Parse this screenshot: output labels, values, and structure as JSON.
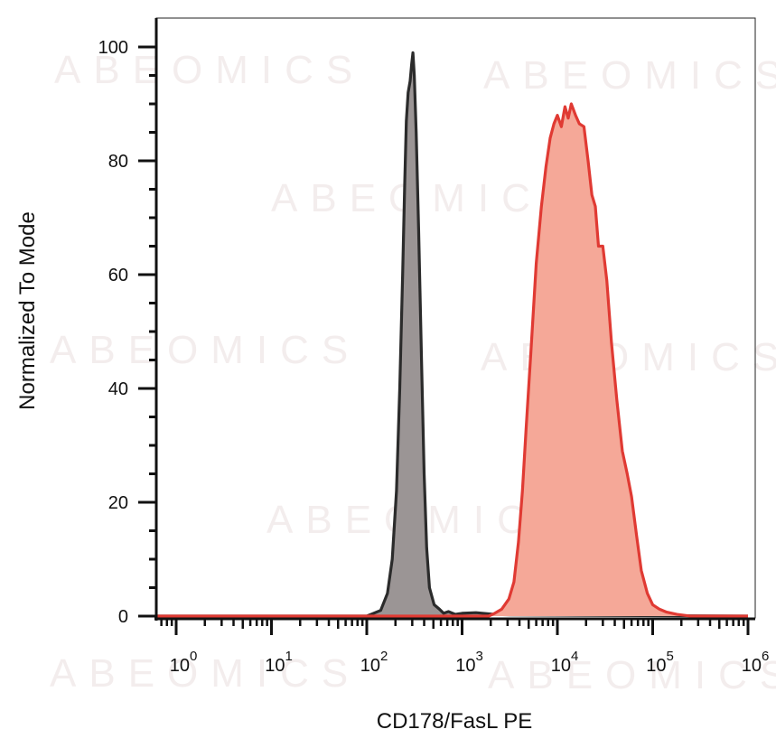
{
  "chart_data": {
    "type": "area",
    "title": "",
    "xlabel": "CD178/FasL PE",
    "ylabel": "Normalized To Mode",
    "x_scale": "log",
    "xlim": [
      0.6,
      1000000
    ],
    "ylim": [
      0,
      105
    ],
    "x_tick_labels": [
      {
        "base": "10",
        "exp": "0"
      },
      {
        "base": "10",
        "exp": "1"
      },
      {
        "base": "10",
        "exp": "2"
      },
      {
        "base": "10",
        "exp": "3"
      },
      {
        "base": "10",
        "exp": "4"
      },
      {
        "base": "10",
        "exp": "5"
      },
      {
        "base": "10",
        "exp": "6"
      }
    ],
    "y_ticks": [
      0,
      20,
      40,
      60,
      80,
      100
    ],
    "y_tick_labels": [
      "0",
      "20",
      "40",
      "60",
      "80",
      "100"
    ],
    "grid": false,
    "watermark": "ABEOMICS",
    "series": [
      {
        "color": "#2b2b2b",
        "fill": "#9b9595",
        "points": [
          [
            0.6,
            0
          ],
          [
            100,
            0
          ],
          [
            140,
            1
          ],
          [
            165,
            4
          ],
          [
            185,
            10
          ],
          [
            205,
            22
          ],
          [
            222,
            40
          ],
          [
            238,
            60
          ],
          [
            250,
            76
          ],
          [
            260,
            87
          ],
          [
            272,
            92
          ],
          [
            285,
            94
          ],
          [
            296,
            97
          ],
          [
            305,
            99
          ],
          [
            315,
            95
          ],
          [
            330,
            85
          ],
          [
            350,
            68
          ],
          [
            375,
            45
          ],
          [
            400,
            25
          ],
          [
            425,
            12
          ],
          [
            455,
            5
          ],
          [
            510,
            2
          ],
          [
            580,
            1.2
          ],
          [
            640,
            0.5
          ],
          [
            720,
            0.8
          ],
          [
            850,
            0.3
          ],
          [
            1000,
            0.5
          ],
          [
            1400,
            0.6
          ],
          [
            2200,
            0.3
          ],
          [
            3200,
            0.2
          ],
          [
            1000000,
            0
          ]
        ]
      },
      {
        "color": "#e03a33",
        "fill": "#f5a898",
        "points": [
          [
            0.6,
            0
          ],
          [
            1900,
            0
          ],
          [
            2200,
            0.5
          ],
          [
            2600,
            1.2
          ],
          [
            3100,
            3
          ],
          [
            3500,
            6
          ],
          [
            3900,
            13
          ],
          [
            4300,
            22
          ],
          [
            4700,
            33
          ],
          [
            5300,
            47
          ],
          [
            6000,
            62
          ],
          [
            6800,
            72
          ],
          [
            7600,
            79
          ],
          [
            8400,
            84
          ],
          [
            9200,
            86.5
          ],
          [
            10000,
            88
          ],
          [
            11000,
            86
          ],
          [
            12000,
            89.5
          ],
          [
            13000,
            87.5
          ],
          [
            14000,
            90
          ],
          [
            15500,
            88
          ],
          [
            17000,
            86.5
          ],
          [
            19000,
            86
          ],
          [
            21000,
            80
          ],
          [
            23000,
            74
          ],
          [
            25000,
            72
          ],
          [
            27000,
            65
          ],
          [
            30000,
            65
          ],
          [
            33000,
            59
          ],
          [
            37000,
            48
          ],
          [
            42000,
            38
          ],
          [
            48000,
            29
          ],
          [
            54000,
            25
          ],
          [
            60000,
            21
          ],
          [
            68000,
            14
          ],
          [
            76000,
            8
          ],
          [
            88000,
            4
          ],
          [
            100000,
            2
          ],
          [
            118000,
            1.2
          ],
          [
            140000,
            0.7
          ],
          [
            180000,
            0.3
          ],
          [
            250000,
            0
          ],
          [
            1000000,
            0
          ]
        ]
      }
    ]
  }
}
